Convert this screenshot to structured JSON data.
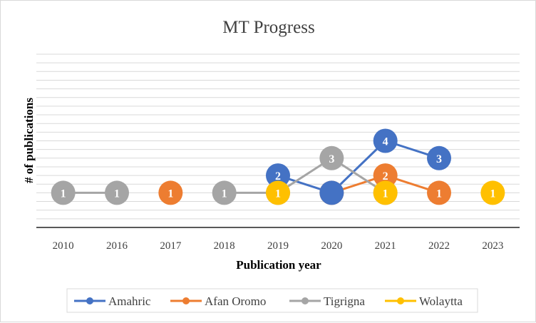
{
  "chart_data": {
    "type": "line",
    "title": "MT Progress",
    "xlabel": "Publication year",
    "ylabel": "# of publications",
    "categories": [
      "2010",
      "2016",
      "2017",
      "2018",
      "2019",
      "2020",
      "2021",
      "2022",
      "2023"
    ],
    "ylim": [
      -1,
      9
    ],
    "y_grid_step": 0.5,
    "grid": true,
    "legend_position": "bottom",
    "series": [
      {
        "name": "Amahric",
        "color": "#4472C4",
        "values": [
          null,
          null,
          null,
          null,
          2,
          1,
          4,
          3,
          null
        ],
        "labels": [
          null,
          null,
          null,
          null,
          "2",
          null,
          "4",
          "3",
          null
        ]
      },
      {
        "name": "Afan Oromo",
        "color": "#ED7D31",
        "values": [
          null,
          null,
          1,
          null,
          null,
          1,
          2,
          1,
          null
        ],
        "labels": [
          null,
          null,
          "1",
          null,
          null,
          "1",
          "2",
          "1",
          null
        ]
      },
      {
        "name": "Tigrigna",
        "color": "#A5A5A5",
        "values": [
          1,
          1,
          null,
          1,
          1,
          3,
          1,
          null,
          null
        ],
        "labels": [
          "1",
          "1",
          null,
          "1",
          null,
          "3",
          null,
          null,
          null
        ]
      },
      {
        "name": "Wolaytta",
        "color": "#FFC000",
        "values": [
          null,
          null,
          null,
          null,
          1,
          null,
          1,
          null,
          1
        ],
        "labels": [
          null,
          null,
          null,
          null,
          "1",
          null,
          "1",
          null,
          "1"
        ]
      }
    ]
  }
}
